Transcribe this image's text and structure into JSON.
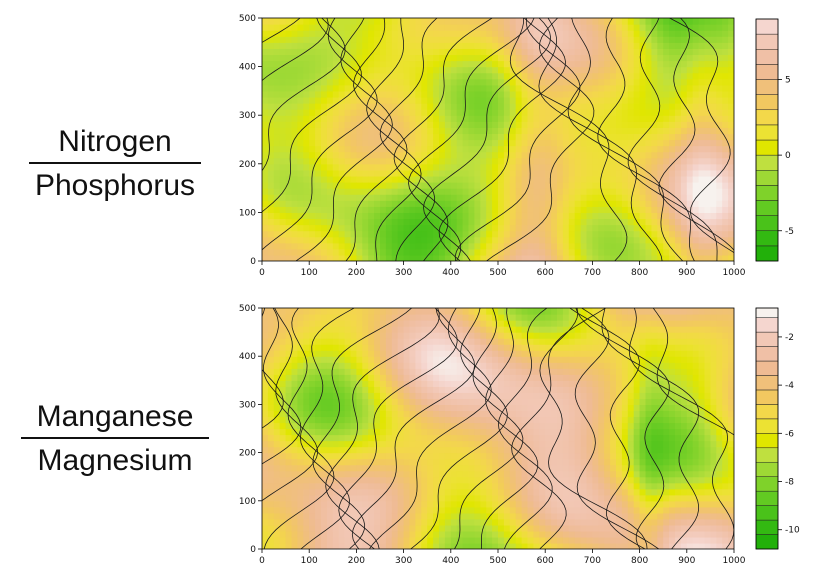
{
  "labels": {
    "top_numerator": "Nitrogen",
    "top_denominator": "Phosphorus",
    "bottom_numerator": "Manganese",
    "bottom_denominator": "Magnesium"
  },
  "chart_data": [
    {
      "type": "heatmap",
      "title": "",
      "xlabel": "",
      "ylabel": "",
      "xlim": [
        0,
        1000
      ],
      "ylim": [
        0,
        500
      ],
      "x_ticks": [
        "0",
        "100",
        "200",
        "300",
        "400",
        "500",
        "600",
        "700",
        "800",
        "900",
        "1000"
      ],
      "y_ticks": [
        "0",
        "100",
        "200",
        "300",
        "400",
        "500"
      ],
      "colorbar": {
        "range": [
          -7,
          9
        ],
        "ticks": [
          "5",
          "0",
          "-5"
        ],
        "tick_values": [
          5,
          0,
          -5
        ],
        "levels": [
          -7,
          -6,
          -5,
          -4,
          -3,
          -2,
          -1,
          0,
          1,
          2,
          3,
          4,
          5,
          6,
          7,
          8,
          9
        ],
        "colors": [
          "#22b00a",
          "#33b912",
          "#4ac21a",
          "#62ca22",
          "#7fd22a",
          "#9ed935",
          "#bfe03f",
          "#e0e600",
          "#ece233",
          "#f3d84a",
          "#f2c860",
          "#f0c07a",
          "#efbb93",
          "#f0c0a6",
          "#f2c8b6",
          "#f5d6cf",
          "#f7f2ee"
        ]
      }
    },
    {
      "type": "heatmap",
      "title": "",
      "xlabel": "",
      "ylabel": "",
      "xlim": [
        0,
        1000
      ],
      "ylim": [
        0,
        500
      ],
      "x_ticks": [
        "0",
        "100",
        "200",
        "300",
        "400",
        "500",
        "600",
        "700",
        "800",
        "900",
        "1000"
      ],
      "y_ticks": [
        "0",
        "100",
        "200",
        "300",
        "400",
        "500"
      ],
      "colorbar": {
        "range": [
          -10.8,
          -0.8
        ],
        "ticks": [
          "-2",
          "-4",
          "-6",
          "-8",
          "-10"
        ],
        "tick_values": [
          -2,
          -4,
          -6,
          -8,
          -10
        ],
        "levels": [
          -10.8,
          -10.2,
          -9.6,
          -9.0,
          -8.4,
          -7.8,
          -7.2,
          -6.6,
          -6.0,
          -5.4,
          -4.8,
          -4.2,
          -3.6,
          -3.0,
          -2.4,
          -1.8,
          -1.2
        ],
        "colors": [
          "#22b00a",
          "#33b912",
          "#4ac21a",
          "#62ca22",
          "#7fd22a",
          "#9ed935",
          "#bfe03f",
          "#e0e600",
          "#ece233",
          "#f3d84a",
          "#f2c860",
          "#f0c07a",
          "#efbb93",
          "#f0c0a6",
          "#f2c8b6",
          "#f5d6cf",
          "#f7f2ee"
        ]
      }
    }
  ]
}
